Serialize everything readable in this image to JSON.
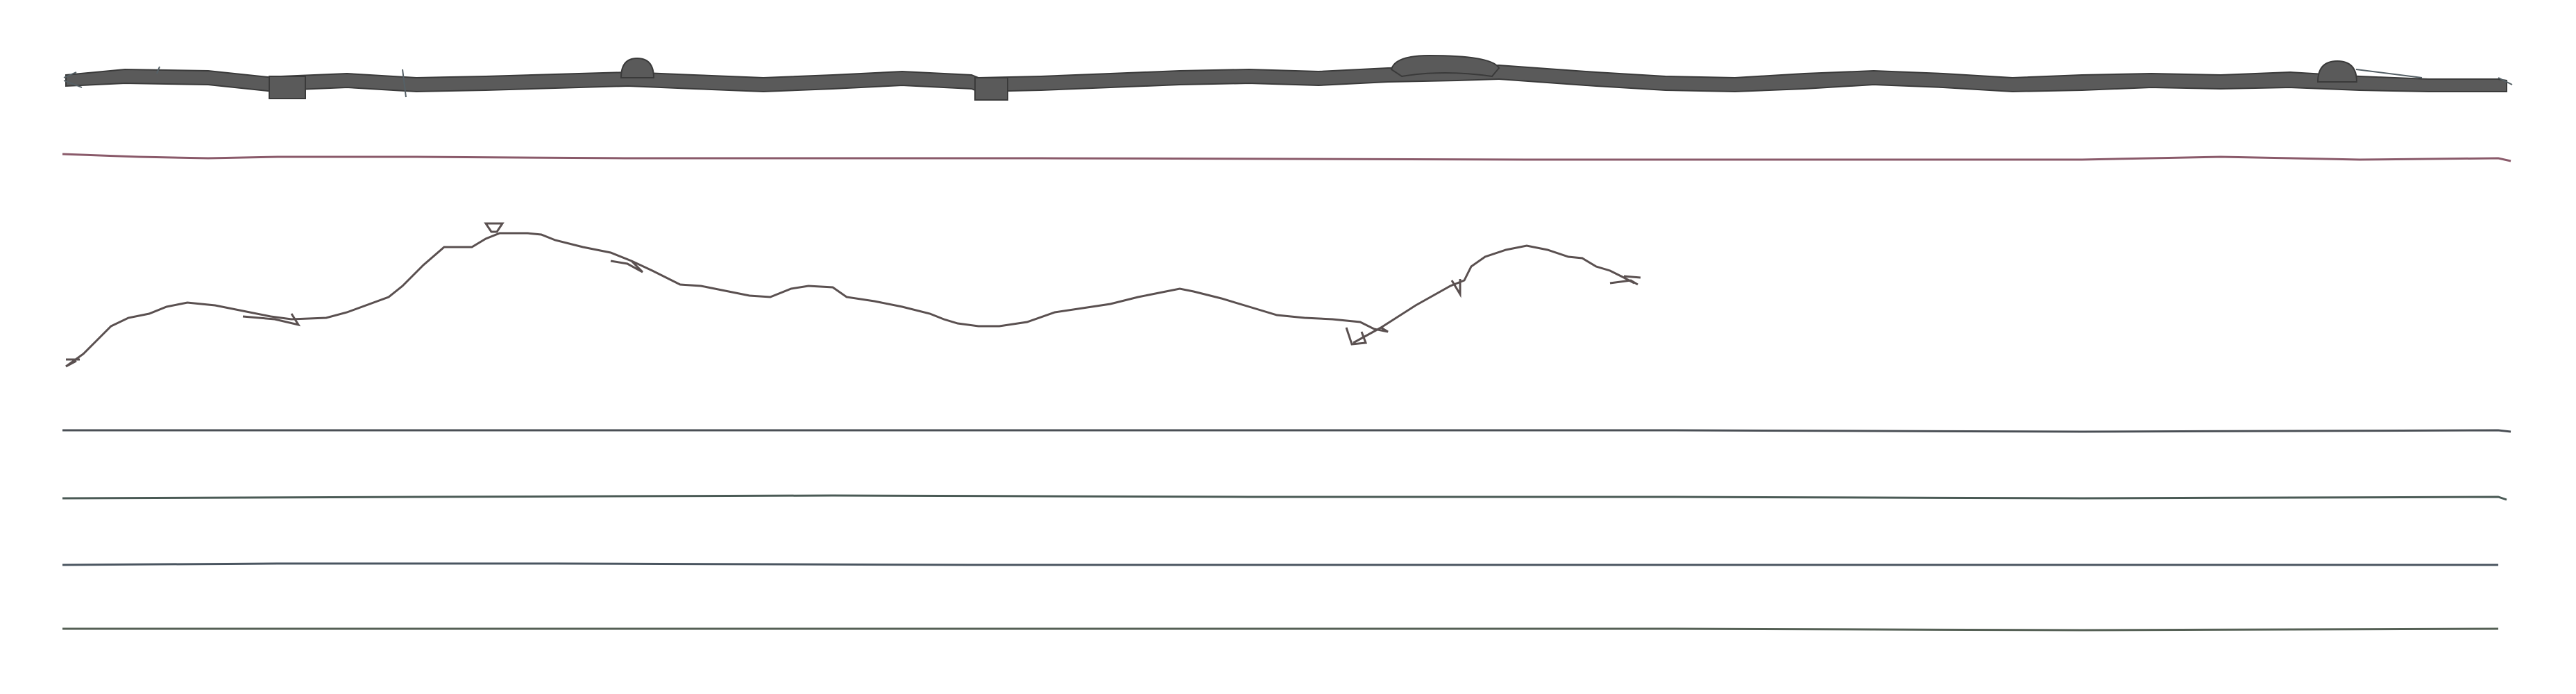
{
  "colors": {
    "background": "#ffffff",
    "band_fill": "#5a5a5a",
    "band_stroke": "#3a3a3a",
    "track_line_pink": "#8a5a6a",
    "track_line_gray": "#4a4f55",
    "profile_line": "#5a5050"
  },
  "tracks": [
    {
      "name": "dense-sequence-band",
      "type": "band"
    },
    {
      "name": "track-line-1",
      "type": "line"
    },
    {
      "name": "profile-trace",
      "type": "trace"
    },
    {
      "name": "track-line-2",
      "type": "line"
    },
    {
      "name": "track-line-3",
      "type": "line"
    },
    {
      "name": "track-line-4",
      "type": "line"
    },
    {
      "name": "track-line-5",
      "type": "line"
    }
  ]
}
